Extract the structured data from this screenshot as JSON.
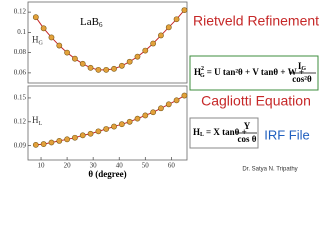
{
  "chart_data": [
    {
      "type": "scatter",
      "ylabel": "H",
      "ylabel_sub": "G",
      "annotation": "LaB",
      "annotation_sub": "6",
      "xlim": [
        5,
        66
      ],
      "ylim": [
        0.05,
        0.13
      ],
      "yticks": [
        0.06,
        0.08,
        0.1,
        0.12
      ],
      "series": [
        {
          "color": "#e3a13a",
          "line_color": "#c62828",
          "x": [
            8,
            11,
            14,
            17,
            20,
            23,
            26,
            29,
            32,
            35,
            38,
            41,
            44,
            47,
            50,
            53,
            56,
            59,
            62,
            65
          ],
          "values": [
            0.115,
            0.104,
            0.095,
            0.087,
            0.08,
            0.074,
            0.069,
            0.065,
            0.063,
            0.063,
            0.064,
            0.067,
            0.071,
            0.076,
            0.082,
            0.089,
            0.097,
            0.105,
            0.113,
            0.122
          ]
        }
      ]
    },
    {
      "type": "scatter",
      "ylabel": "H",
      "ylabel_sub": "L",
      "xlabel": "θ (degree)",
      "xlim": [
        5,
        66
      ],
      "ylim": [
        0.072,
        0.165
      ],
      "xticks": [
        10,
        20,
        30,
        40,
        50,
        60
      ],
      "yticks": [
        0.09,
        0.12,
        0.15
      ],
      "series": [
        {
          "color": "#e3a13a",
          "line_color": "#c62828",
          "x": [
            8,
            11,
            14,
            17,
            20,
            23,
            26,
            29,
            32,
            35,
            38,
            41,
            44,
            47,
            50,
            53,
            56,
            59,
            62,
            65
          ],
          "values": [
            0.091,
            0.092,
            0.094,
            0.096,
            0.098,
            0.1,
            0.103,
            0.105,
            0.108,
            0.111,
            0.114,
            0.117,
            0.12,
            0.124,
            0.128,
            0.132,
            0.137,
            0.142,
            0.147,
            0.153
          ]
        }
      ]
    }
  ],
  "slide": {
    "title": "Rietveld Refinement",
    "subtitle": "Cagliotti Equation",
    "file": "IRF File",
    "author": "Dr. Satya N. Tripathy",
    "formula_g": {
      "lhs": "H",
      "lhs_sub": "G",
      "lhs_sup": "2",
      "rhs": "= U tan²θ + V tanθ + W +",
      "num": "I",
      "num_sub": "G",
      "den": "cos²θ"
    },
    "formula_l": {
      "lhs": "H",
      "lhs_sub": "L",
      "rhs": "= X tanθ +",
      "num": "Y",
      "den": "cos θ"
    }
  }
}
